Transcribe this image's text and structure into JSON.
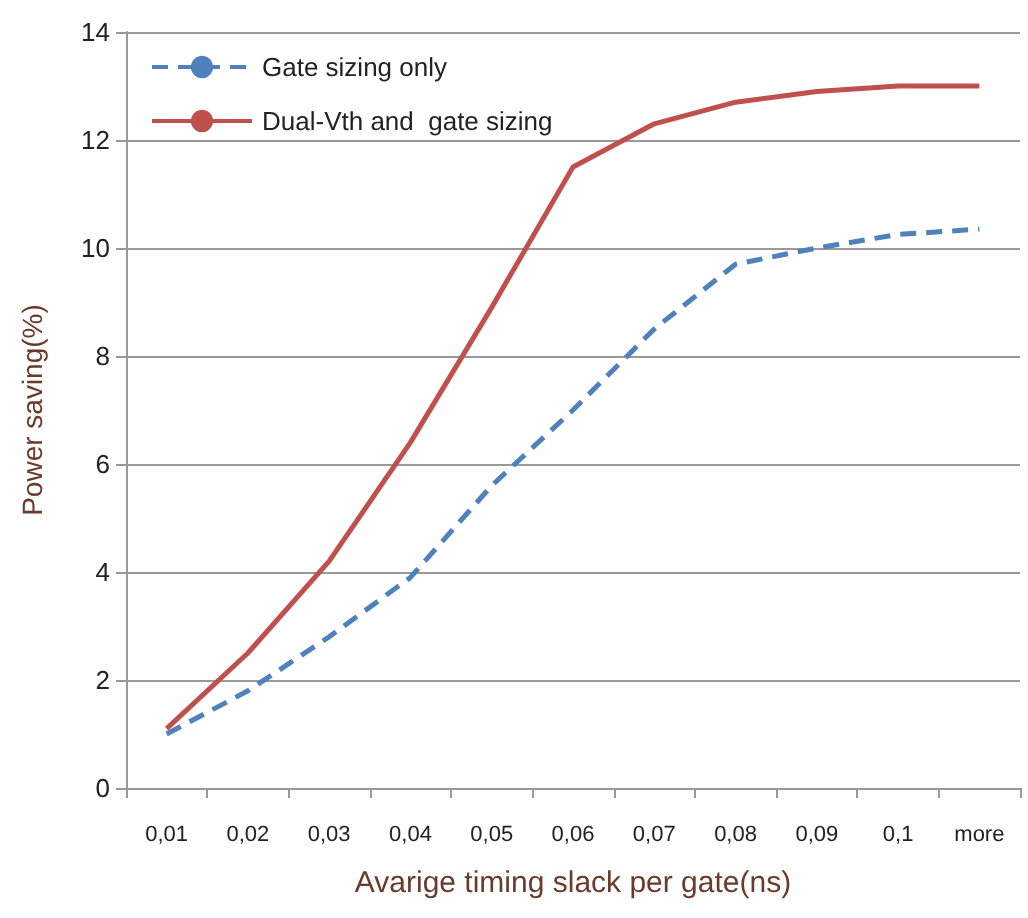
{
  "chart_data": {
    "type": "line",
    "xlabel": "Avarige timing slack per gate(ns)",
    "ylabel": "Power saving(%)",
    "categories": [
      "0,01",
      "0,02",
      "0,03",
      "0,04",
      "0,05",
      "0,06",
      "0,07",
      "0,08",
      "0,09",
      "0,1",
      "more"
    ],
    "series": [
      {
        "name": "Gate sizing only",
        "color": "#4f81bd",
        "line_style": "dashed",
        "values": [
          1.0,
          1.8,
          2.8,
          3.9,
          5.6,
          7.0,
          8.5,
          9.7,
          10.0,
          10.25,
          10.35
        ]
      },
      {
        "name": "Dual-Vth and  gate sizing",
        "color": "#c0504d",
        "line_style": "solid",
        "values": [
          1.1,
          2.5,
          4.2,
          6.4,
          8.9,
          11.5,
          12.3,
          12.7,
          12.9,
          13.0,
          13.0
        ]
      }
    ],
    "ylim": [
      0,
      14
    ],
    "yticks": [
      0,
      2,
      4,
      6,
      8,
      10,
      12,
      14
    ],
    "grid": "y",
    "legend": "top left",
    "marker": "none"
  }
}
